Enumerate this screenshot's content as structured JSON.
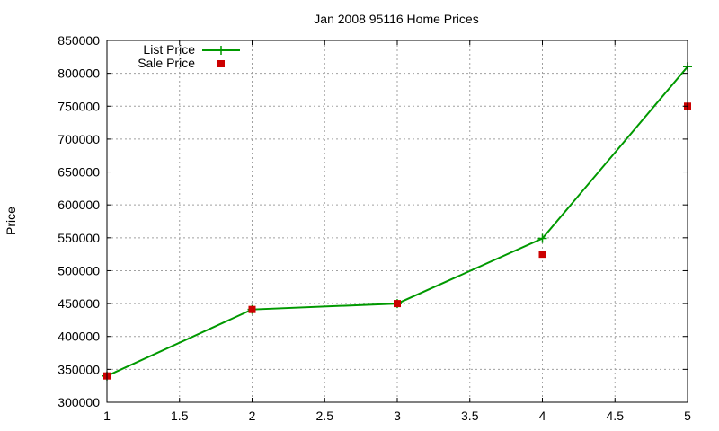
{
  "chart_data": {
    "type": "line",
    "title": "Jan 2008 95116 Home Prices",
    "xlabel": "",
    "ylabel": "Price",
    "xlim": [
      1,
      5
    ],
    "ylim": [
      300000,
      850000
    ],
    "xticks": [
      "1",
      "1.5",
      "2",
      "2.5",
      "3",
      "3.5",
      "4",
      "4.5",
      "5"
    ],
    "yticks": [
      "300000",
      "350000",
      "400000",
      "450000",
      "500000",
      "550000",
      "600000",
      "650000",
      "700000",
      "750000",
      "800000",
      "850000"
    ],
    "grid": true,
    "legend_position": "top-left",
    "series": [
      {
        "name": "List Price",
        "style": "lines+points",
        "color": "#009900",
        "x": [
          1,
          2,
          3,
          4,
          5
        ],
        "y": [
          340000,
          441000,
          450000,
          549000,
          810000
        ]
      },
      {
        "name": "Sale Price",
        "style": "points",
        "color": "#cc0000",
        "x": [
          1,
          2,
          3,
          4,
          5
        ],
        "y": [
          340000,
          441000,
          450000,
          525000,
          750000
        ]
      }
    ]
  }
}
